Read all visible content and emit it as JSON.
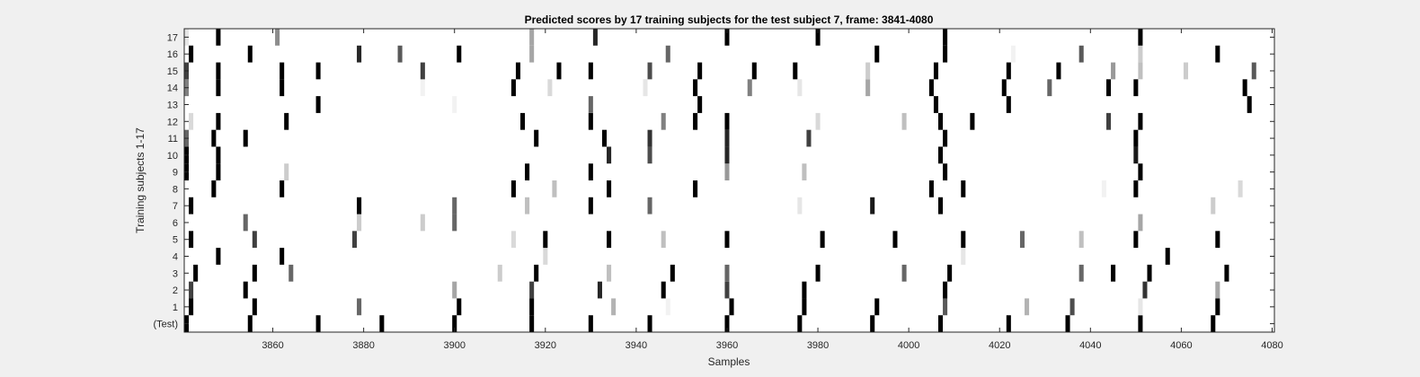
{
  "chart_data": {
    "type": "heatmap",
    "title": "Predicted scores by 17 training subjects for the test subject 7, frame: 3841-4080",
    "xlabel": "Samples",
    "ylabel": "Training subjects 1-17",
    "xlim": [
      3840.5,
      4080.5
    ],
    "xticks": [
      3860,
      3880,
      3900,
      3920,
      3940,
      3960,
      3980,
      4000,
      4020,
      4040,
      4060,
      4080
    ],
    "row_labels": [
      "(Test)",
      "1",
      "2",
      "3",
      "4",
      "5",
      "6",
      "7",
      "8",
      "9",
      "10",
      "11",
      "12",
      "13",
      "14",
      "15",
      "16",
      "17"
    ],
    "value_scale": "grayscale intensity 0 (white) to 1 (black)",
    "rows": [
      {
        "label": "(Test)",
        "cells": [
          [
            3841,
            1
          ],
          [
            3855,
            1
          ],
          [
            3870,
            1
          ],
          [
            3884,
            1
          ],
          [
            3900,
            1
          ],
          [
            3917,
            1
          ],
          [
            3930,
            1
          ],
          [
            3943,
            1
          ],
          [
            3960,
            1
          ],
          [
            3976,
            1
          ],
          [
            3992,
            1
          ],
          [
            4007,
            1
          ],
          [
            4022,
            1
          ],
          [
            4035,
            1
          ],
          [
            4051,
            1
          ],
          [
            4067,
            1
          ]
        ]
      },
      {
        "label": "1",
        "cells": [
          [
            3842,
            1
          ],
          [
            3856,
            1
          ],
          [
            3879,
            0.6
          ],
          [
            3901,
            1
          ],
          [
            3917,
            1
          ],
          [
            3935,
            0.3
          ],
          [
            3947,
            0.05
          ],
          [
            3961,
            1
          ],
          [
            3977,
            1
          ],
          [
            3993,
            1
          ],
          [
            4008,
            0.65
          ],
          [
            4026,
            0.3
          ],
          [
            4036,
            0.7
          ],
          [
            4051,
            0.1
          ],
          [
            4068,
            1
          ]
        ]
      },
      {
        "label": "2",
        "cells": [
          [
            3842,
            0.75
          ],
          [
            3854,
            1
          ],
          [
            3900,
            0.35
          ],
          [
            3917,
            0.75
          ],
          [
            3932,
            0.85
          ],
          [
            3946,
            1
          ],
          [
            3960,
            0.75
          ],
          [
            3977,
            1
          ],
          [
            4008,
            1
          ],
          [
            4052,
            0.8
          ],
          [
            4068,
            0.35
          ]
        ]
      },
      {
        "label": "3",
        "cells": [
          [
            3843,
            1
          ],
          [
            3856,
            1
          ],
          [
            3864,
            0.6
          ],
          [
            3910,
            0.2
          ],
          [
            3918,
            1
          ],
          [
            3934,
            0.25
          ],
          [
            3948,
            1
          ],
          [
            3960,
            0.6
          ],
          [
            3980,
            1
          ],
          [
            3999,
            0.6
          ],
          [
            4009,
            1
          ],
          [
            4038,
            0.6
          ],
          [
            4045,
            1
          ],
          [
            4053,
            1
          ],
          [
            4070,
            1
          ]
        ]
      },
      {
        "label": "4",
        "cells": [
          [
            3848,
            1
          ],
          [
            3862,
            1
          ],
          [
            3920,
            0.15
          ],
          [
            4012,
            0.1
          ],
          [
            4057,
            1
          ]
        ]
      },
      {
        "label": "5",
        "cells": [
          [
            3842,
            1
          ],
          [
            3856,
            0.75
          ],
          [
            3878,
            0.75
          ],
          [
            3913,
            0.15
          ],
          [
            3920,
            1
          ],
          [
            3934,
            1
          ],
          [
            3946,
            0.25
          ],
          [
            3960,
            1
          ],
          [
            3981,
            1
          ],
          [
            3997,
            1
          ],
          [
            4012,
            1
          ],
          [
            4025,
            0.6
          ],
          [
            4038,
            0.25
          ],
          [
            4050,
            1
          ],
          [
            4068,
            1
          ]
        ]
      },
      {
        "label": "6",
        "cells": [
          [
            3854,
            0.6
          ],
          [
            3879,
            0.2
          ],
          [
            3893,
            0.2
          ],
          [
            3900,
            0.6
          ],
          [
            4051,
            0.35
          ]
        ]
      },
      {
        "label": "7",
        "cells": [
          [
            3842,
            1
          ],
          [
            3879,
            1
          ],
          [
            3900,
            0.6
          ],
          [
            3916,
            0.25
          ],
          [
            3930,
            1
          ],
          [
            3943,
            0.6
          ],
          [
            3976,
            0.1
          ],
          [
            3992,
            0.9
          ],
          [
            4007,
            1
          ],
          [
            4067,
            0.2
          ]
        ]
      },
      {
        "label": "8",
        "cells": [
          [
            3847,
            1
          ],
          [
            3862,
            1
          ],
          [
            3913,
            1
          ],
          [
            3922,
            0.25
          ],
          [
            3934,
            1
          ],
          [
            3953,
            1
          ],
          [
            4005,
            1
          ],
          [
            4012,
            1
          ],
          [
            4043,
            0.05
          ],
          [
            4050,
            1
          ],
          [
            4073,
            0.15
          ]
        ]
      },
      {
        "label": "9",
        "cells": [
          [
            3841,
            1
          ],
          [
            3848,
            1
          ],
          [
            3863,
            0.2
          ],
          [
            3916,
            1
          ],
          [
            3930,
            1
          ],
          [
            3960,
            0.4
          ],
          [
            3977,
            0.25
          ],
          [
            4008,
            1
          ],
          [
            4051,
            1
          ]
        ]
      },
      {
        "label": "10",
        "cells": [
          [
            3841,
            1
          ],
          [
            3848,
            1
          ],
          [
            3934,
            0.85
          ],
          [
            3943,
            0.7
          ],
          [
            3960,
            0.85
          ],
          [
            4007,
            1
          ],
          [
            4050,
            0.9
          ]
        ]
      },
      {
        "label": "11",
        "cells": [
          [
            3841,
            0.6
          ],
          [
            3847,
            1
          ],
          [
            3854,
            1
          ],
          [
            3918,
            1
          ],
          [
            3933,
            1
          ],
          [
            3943,
            0.8
          ],
          [
            3960,
            0.85
          ],
          [
            3978,
            0.75
          ],
          [
            4008,
            1
          ],
          [
            4050,
            1
          ]
        ]
      },
      {
        "label": "12",
        "cells": [
          [
            3842,
            0.15
          ],
          [
            3848,
            1
          ],
          [
            3863,
            1
          ],
          [
            3915,
            1
          ],
          [
            3930,
            1
          ],
          [
            3946,
            0.5
          ],
          [
            3953,
            1
          ],
          [
            3960,
            1
          ],
          [
            3980,
            0.15
          ],
          [
            3999,
            0.25
          ],
          [
            4007,
            1
          ],
          [
            4014,
            1
          ],
          [
            4044,
            0.75
          ],
          [
            4051,
            1
          ]
        ]
      },
      {
        "label": "13",
        "cells": [
          [
            3870,
            1
          ],
          [
            3900,
            0.05
          ],
          [
            3930,
            0.6
          ],
          [
            3954,
            1
          ],
          [
            4006,
            1
          ],
          [
            4022,
            1
          ],
          [
            4075,
            1
          ]
        ]
      },
      {
        "label": "14",
        "cells": [
          [
            3841,
            0.5
          ],
          [
            3848,
            1
          ],
          [
            3862,
            1
          ],
          [
            3893,
            0.05
          ],
          [
            3913,
            1
          ],
          [
            3921,
            0.15
          ],
          [
            3942,
            0.1
          ],
          [
            3953,
            1
          ],
          [
            3965,
            0.5
          ],
          [
            3976,
            0.1
          ],
          [
            3991,
            0.35
          ],
          [
            4005,
            1
          ],
          [
            4021,
            1
          ],
          [
            4031,
            0.6
          ],
          [
            4044,
            1
          ],
          [
            4050,
            1
          ],
          [
            4074,
            1
          ]
        ]
      },
      {
        "label": "15",
        "cells": [
          [
            3841,
            0.75
          ],
          [
            3848,
            1
          ],
          [
            3862,
            1
          ],
          [
            3870,
            1
          ],
          [
            3893,
            0.75
          ],
          [
            3914,
            1
          ],
          [
            3923,
            1
          ],
          [
            3930,
            1
          ],
          [
            3943,
            0.7
          ],
          [
            3954,
            1
          ],
          [
            3966,
            1
          ],
          [
            3975,
            1
          ],
          [
            3991,
            0.2
          ],
          [
            4006,
            1
          ],
          [
            4022,
            1
          ],
          [
            4033,
            1
          ],
          [
            4045,
            0.4
          ],
          [
            4051,
            0.25
          ],
          [
            4061,
            0.2
          ],
          [
            4076,
            0.65
          ]
        ]
      },
      {
        "label": "16",
        "cells": [
          [
            3842,
            1
          ],
          [
            3855,
            1
          ],
          [
            3879,
            0.85
          ],
          [
            3888,
            0.65
          ],
          [
            3901,
            1
          ],
          [
            3917,
            0.35
          ],
          [
            3947,
            0.6
          ],
          [
            3993,
            1
          ],
          [
            4008,
            1
          ],
          [
            4023,
            0.05
          ],
          [
            4038,
            0.65
          ],
          [
            4051,
            0.2
          ],
          [
            4068,
            1
          ]
        ]
      },
      {
        "label": "17",
        "cells": [
          [
            3841,
            0.1
          ],
          [
            3848,
            1
          ],
          [
            3861,
            0.45
          ],
          [
            3917,
            0.35
          ],
          [
            3931,
            0.85
          ],
          [
            3960,
            1
          ],
          [
            3980,
            1
          ],
          [
            4008,
            1
          ],
          [
            4051,
            1
          ]
        ]
      }
    ]
  }
}
